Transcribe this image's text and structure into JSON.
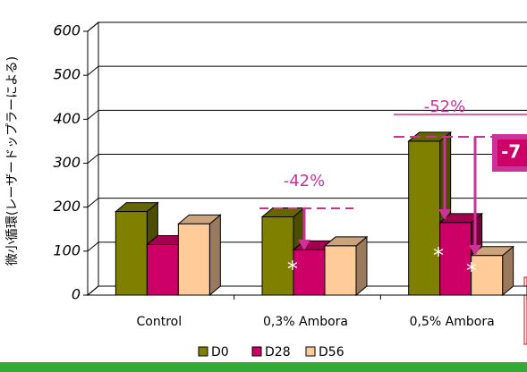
{
  "chart_data": {
    "type": "bar3d",
    "y_label": "微小循環(レーザードップラーによる)",
    "categories": [
      "Control",
      "0,3% Ambora",
      "0,5% Ambora"
    ],
    "series": [
      {
        "name": "D0",
        "color": "#808000",
        "values": [
          190,
          178,
          350
        ]
      },
      {
        "name": "D28",
        "color": "#cc0066",
        "values": [
          115,
          103,
          165
        ]
      },
      {
        "name": "D56",
        "color": "#ffcc99",
        "values": [
          162,
          112,
          90
        ]
      }
    ],
    "ylim": [
      0,
      600
    ],
    "yticks": [
      0,
      100,
      200,
      300,
      400,
      500,
      600
    ],
    "grid": true,
    "legend": "bottom",
    "annotations": [
      "-42%",
      "-52%",
      "-7",
      "*",
      "*",
      "*"
    ]
  }
}
